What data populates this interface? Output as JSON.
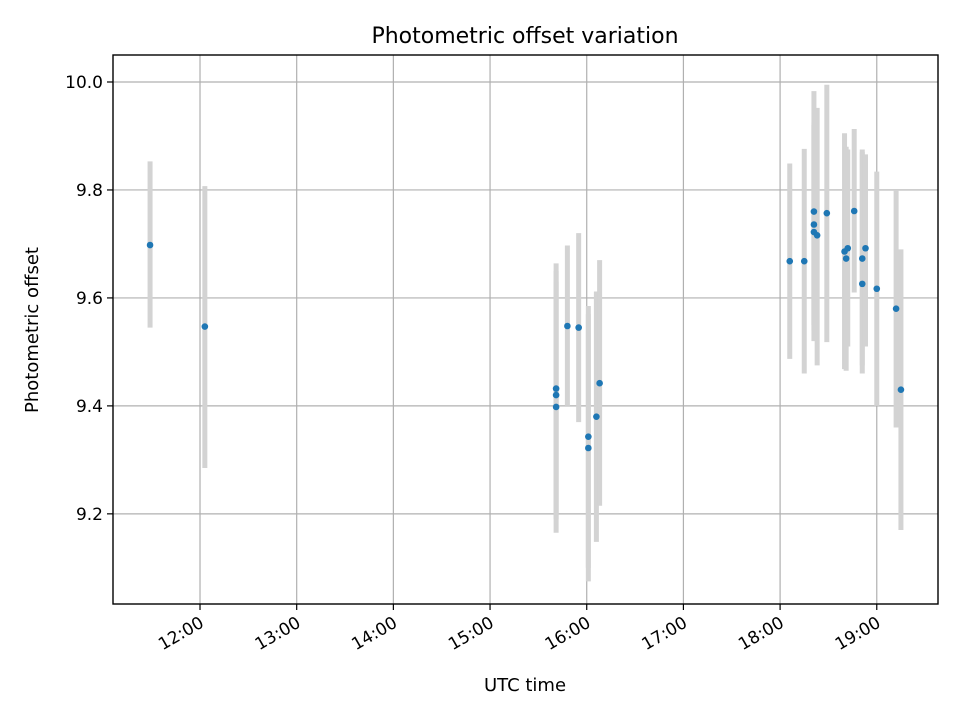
{
  "chart_data": {
    "type": "scatter",
    "title": "Photometric offset variation",
    "xlabel": "UTC time",
    "ylabel": "Photometric offset",
    "xlim": [
      "11:06",
      "19:38"
    ],
    "ylim": [
      9.033,
      10.05
    ],
    "x_ticks": [
      "12:00",
      "13:00",
      "14:00",
      "15:00",
      "16:00",
      "17:00",
      "18:00",
      "19:00"
    ],
    "y_ticks": [
      "9.2",
      "9.4",
      "9.6",
      "9.8",
      "10.0"
    ],
    "grid": true,
    "point_color": "#1f77b4",
    "errorbar_color": "#d3d3d3",
    "points": [
      {
        "x": "11:29",
        "y": 9.698,
        "ylo": 9.545,
        "yhi": 9.853
      },
      {
        "x": "12:03",
        "y": 9.547,
        "ylo": 9.285,
        "yhi": 9.807
      },
      {
        "x": "15:41",
        "y": 9.432,
        "ylo": 9.2,
        "yhi": 9.664
      },
      {
        "x": "15:41",
        "y": 9.42,
        "ylo": 9.19,
        "yhi": 9.65
      },
      {
        "x": "15:41",
        "y": 9.398,
        "ylo": 9.165,
        "yhi": 9.63
      },
      {
        "x": "15:48",
        "y": 9.548,
        "ylo": 9.4,
        "yhi": 9.697
      },
      {
        "x": "15:55",
        "y": 9.545,
        "ylo": 9.37,
        "yhi": 9.72
      },
      {
        "x": "16:01",
        "y": 9.343,
        "ylo": 9.1,
        "yhi": 9.585
      },
      {
        "x": "16:01",
        "y": 9.322,
        "ylo": 9.075,
        "yhi": 9.57
      },
      {
        "x": "16:06",
        "y": 9.38,
        "ylo": 9.148,
        "yhi": 9.612
      },
      {
        "x": "16:08",
        "y": 9.442,
        "ylo": 9.215,
        "yhi": 9.67
      },
      {
        "x": "18:06",
        "y": 9.668,
        "ylo": 9.487,
        "yhi": 9.849
      },
      {
        "x": "18:15",
        "y": 9.668,
        "ylo": 9.46,
        "yhi": 9.876
      },
      {
        "x": "18:21",
        "y": 9.76,
        "ylo": 9.54,
        "yhi": 9.983
      },
      {
        "x": "18:21",
        "y": 9.736,
        "ylo": 9.55,
        "yhi": 9.92
      },
      {
        "x": "18:21",
        "y": 9.722,
        "ylo": 9.52,
        "yhi": 9.925
      },
      {
        "x": "18:23",
        "y": 9.716,
        "ylo": 9.475,
        "yhi": 9.952
      },
      {
        "x": "18:29",
        "y": 9.757,
        "ylo": 9.518,
        "yhi": 9.995
      },
      {
        "x": "18:40",
        "y": 9.686,
        "ylo": 9.468,
        "yhi": 9.905
      },
      {
        "x": "18:41",
        "y": 9.673,
        "ylo": 9.465,
        "yhi": 9.88
      },
      {
        "x": "18:42",
        "y": 9.692,
        "ylo": 9.51,
        "yhi": 9.875
      },
      {
        "x": "18:46",
        "y": 9.761,
        "ylo": 9.61,
        "yhi": 9.913
      },
      {
        "x": "18:51",
        "y": 9.626,
        "ylo": 9.46,
        "yhi": 9.875
      },
      {
        "x": "18:51",
        "y": 9.673,
        "ylo": 9.475,
        "yhi": 9.87
      },
      {
        "x": "18:53",
        "y": 9.692,
        "ylo": 9.51,
        "yhi": 9.866
      },
      {
        "x": "19:00",
        "y": 9.617,
        "ylo": 9.4,
        "yhi": 9.834
      },
      {
        "x": "19:12",
        "y": 9.58,
        "ylo": 9.36,
        "yhi": 9.8
      },
      {
        "x": "19:15",
        "y": 9.43,
        "ylo": 9.17,
        "yhi": 9.69
      }
    ]
  }
}
